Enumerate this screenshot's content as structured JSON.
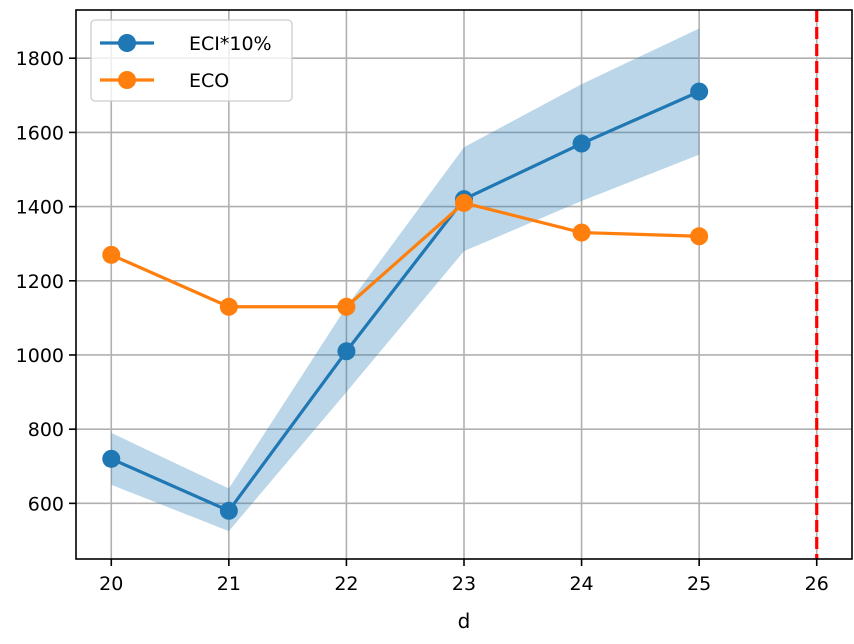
{
  "chart_data": {
    "type": "line",
    "title": "",
    "xlabel": "d",
    "ylabel": "",
    "xlim": [
      19.7,
      26.3
    ],
    "ylim": [
      450,
      1930
    ],
    "x_ticks": [
      20,
      21,
      22,
      23,
      24,
      25,
      26
    ],
    "y_ticks": [
      600,
      800,
      1000,
      1200,
      1400,
      1600,
      1800
    ],
    "grid": true,
    "legend_position": "top-left",
    "series": [
      {
        "name": "ECI*10%",
        "color": "#1f77b4",
        "marker": "circle",
        "x": [
          20,
          21,
          22,
          23,
          24,
          25
        ],
        "y": [
          720,
          580,
          1010,
          1420,
          1570,
          1710
        ],
        "band_lower": [
          650,
          525,
          900,
          1280,
          1415,
          1540
        ],
        "band_upper": [
          790,
          640,
          1130,
          1560,
          1730,
          1880
        ],
        "band_color": "#1f77b4"
      },
      {
        "name": "ECO",
        "color": "#ff7f0e",
        "marker": "circle",
        "x": [
          20,
          21,
          22,
          23,
          24,
          25
        ],
        "y": [
          1270,
          1130,
          1130,
          1410,
          1330,
          1320
        ]
      }
    ],
    "vlines": [
      {
        "x": 26,
        "color": "#ff0000",
        "style": "dashed"
      }
    ]
  }
}
